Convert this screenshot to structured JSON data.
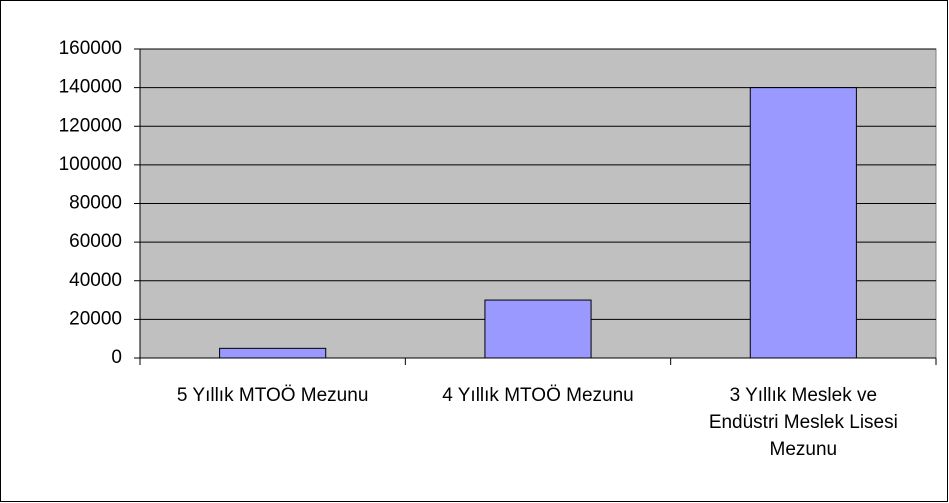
{
  "chart_data": {
    "type": "bar",
    "categories": [
      "5 Yıllık MTOÖ Mezunu",
      "4 Yıllık MTOÖ Mezunu",
      "3 Yıllık Meslek ve Endüstri Meslek Lisesi Mezunu"
    ],
    "values": [
      5000,
      30000,
      140000
    ],
    "color": "#9999ff",
    "ylim": [
      0,
      160000
    ],
    "yticks": [
      0,
      20000,
      40000,
      60000,
      80000,
      100000,
      120000,
      140000,
      160000
    ],
    "grid": true
  }
}
